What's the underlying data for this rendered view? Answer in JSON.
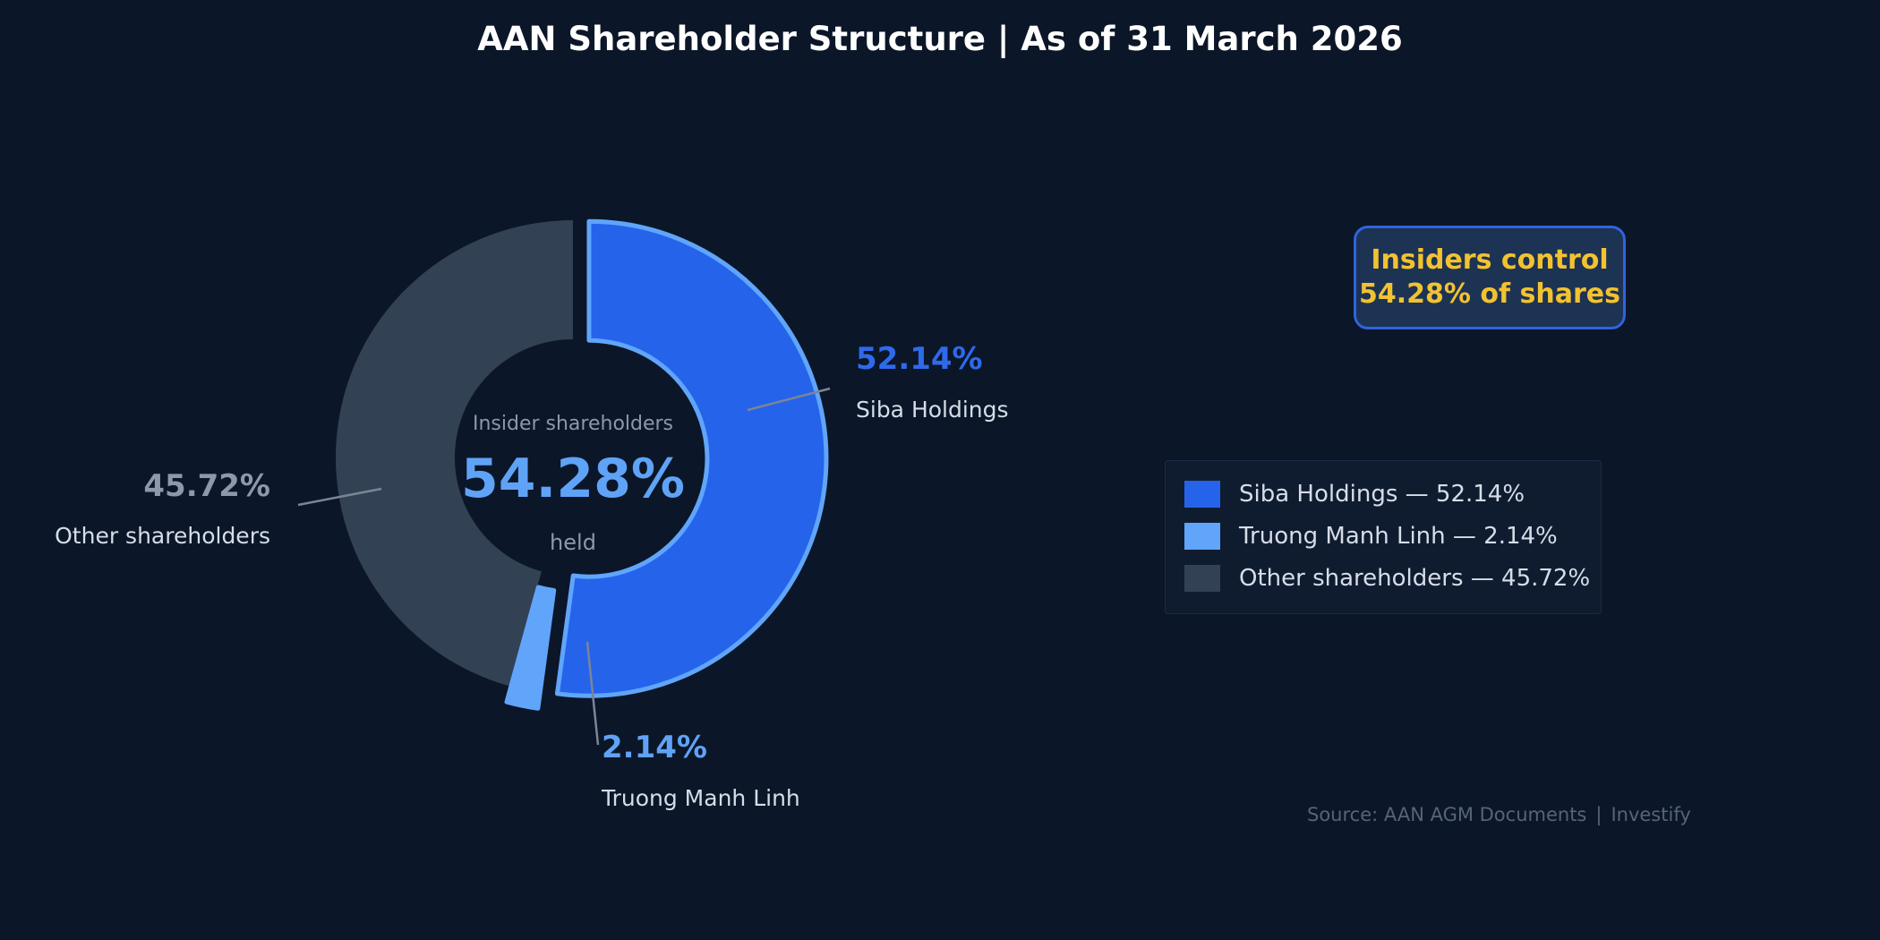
{
  "title": "AAN Shareholder Structure  |  As of 31 March 2026",
  "chart_data": {
    "type": "pie",
    "variant": "donut",
    "categories": [
      "Siba Holdings",
      "Truong Manh Linh",
      "Other shareholders"
    ],
    "values": [
      52.14,
      2.14,
      45.72
    ],
    "value_labels": [
      "52.14%",
      "2.14%",
      "45.72%"
    ],
    "colors": [
      "#2563eb",
      "#60a5fa",
      "#334155"
    ],
    "label_colors": [
      "#2f6aeb",
      "#5fa3f7",
      "#8d99ab"
    ],
    "exploded": [
      true,
      true,
      false
    ],
    "start_angle": "top, clockwise",
    "center_text": {
      "top": "Insider shareholders",
      "value": "54.28%",
      "bottom": "held"
    }
  },
  "callout": {
    "line1": "Insiders control",
    "line2": "54.28% of shares"
  },
  "legend": {
    "position": "right",
    "items": [
      {
        "label": "Siba Holdings — 52.14%",
        "color": "#2563eb"
      },
      {
        "label": "Truong Manh Linh — 2.14%",
        "color": "#60a5fa"
      },
      {
        "label": "Other shareholders — 45.72%",
        "color": "#334155"
      }
    ]
  },
  "source": {
    "text": "Source: AAN AGM Documents",
    "separator": "|",
    "brand": "Investify"
  }
}
